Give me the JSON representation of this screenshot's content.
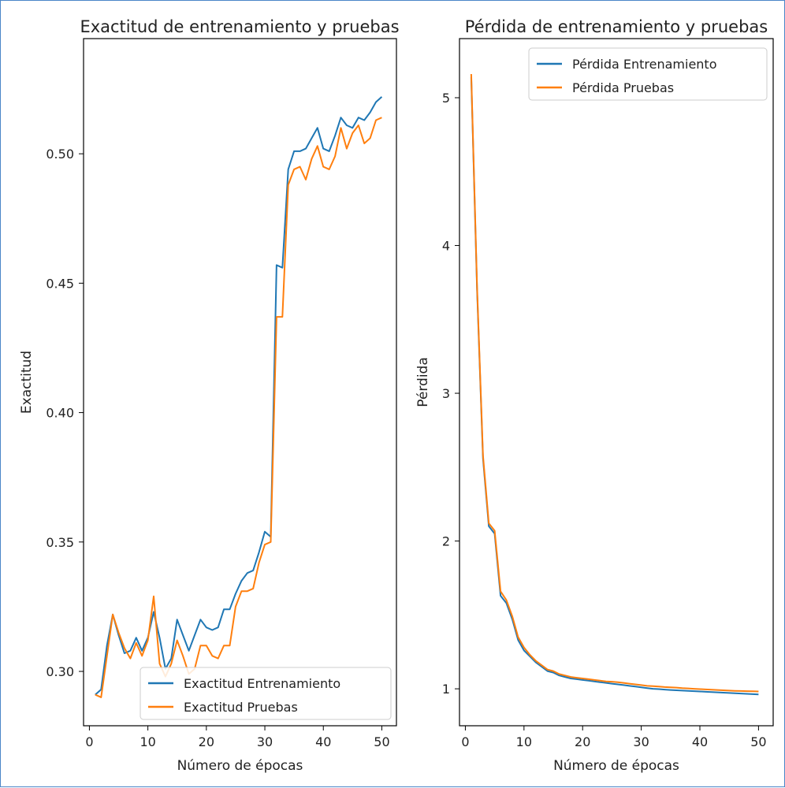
{
  "chart_data": [
    {
      "type": "line",
      "title": "Exactitud de entrenamiento y pruebas",
      "xlabel": "Número de épocas",
      "ylabel": "Exactitud",
      "xlim": [
        -1,
        52.5
      ],
      "ylim": [
        0.279,
        0.5445
      ],
      "xticks": [
        0,
        10,
        20,
        30,
        40,
        50
      ],
      "yticks": [
        0.3,
        0.35,
        0.4,
        0.45,
        0.5
      ],
      "ytick_labels": [
        "0.30",
        "0.35",
        "0.40",
        "0.45",
        "0.50"
      ],
      "legend_position": "lower right",
      "x": [
        1,
        2,
        3,
        4,
        5,
        6,
        7,
        8,
        9,
        10,
        11,
        12,
        13,
        14,
        15,
        16,
        17,
        18,
        19,
        20,
        21,
        22,
        23,
        24,
        25,
        26,
        27,
        28,
        29,
        30,
        31,
        32,
        33,
        34,
        35,
        36,
        37,
        38,
        39,
        40,
        41,
        42,
        43,
        44,
        45,
        46,
        47,
        48,
        49,
        50
      ],
      "series": [
        {
          "name": "Exactitud Entrenamiento",
          "color": "#1f77b4",
          "values": [
            0.291,
            0.293,
            0.31,
            0.322,
            0.314,
            0.307,
            0.308,
            0.313,
            0.308,
            0.313,
            0.323,
            0.313,
            0.301,
            0.305,
            0.32,
            0.314,
            0.308,
            0.314,
            0.32,
            0.317,
            0.316,
            0.317,
            0.324,
            0.324,
            0.33,
            0.335,
            0.338,
            0.339,
            0.346,
            0.354,
            0.352,
            0.457,
            0.456,
            0.494,
            0.501,
            0.501,
            0.502,
            0.506,
            0.51,
            0.502,
            0.501,
            0.507,
            0.514,
            0.511,
            0.51,
            0.514,
            0.513,
            0.516,
            0.52,
            0.522
          ]
        },
        {
          "name": "Exactitud Pruebas",
          "color": "#ff7f0e",
          "values": [
            0.291,
            0.29,
            0.306,
            0.322,
            0.315,
            0.309,
            0.305,
            0.311,
            0.306,
            0.312,
            0.329,
            0.303,
            0.298,
            0.303,
            0.312,
            0.306,
            0.299,
            0.301,
            0.31,
            0.31,
            0.306,
            0.305,
            0.31,
            0.31,
            0.325,
            0.331,
            0.331,
            0.332,
            0.342,
            0.349,
            0.35,
            0.437,
            0.437,
            0.488,
            0.494,
            0.495,
            0.49,
            0.498,
            0.503,
            0.495,
            0.494,
            0.499,
            0.51,
            0.502,
            0.508,
            0.511,
            0.504,
            0.506,
            0.513,
            0.514
          ]
        }
      ]
    },
    {
      "type": "line",
      "title": "Pérdida de entrenamiento y pruebas",
      "xlabel": "Número de épocas",
      "ylabel": "Pérdida",
      "xlim": [
        -1,
        52.5
      ],
      "ylim": [
        0.75,
        5.4
      ],
      "xticks": [
        0,
        10,
        20,
        30,
        40,
        50
      ],
      "yticks": [
        1,
        2,
        3,
        4,
        5
      ],
      "ytick_labels": [
        "1",
        "2",
        "3",
        "4",
        "5"
      ],
      "legend_position": "upper right",
      "x": [
        1,
        2,
        3,
        4,
        5,
        6,
        7,
        8,
        9,
        10,
        11,
        12,
        13,
        14,
        15,
        16,
        17,
        18,
        19,
        20,
        21,
        22,
        23,
        24,
        25,
        26,
        27,
        28,
        29,
        30,
        31,
        32,
        33,
        34,
        35,
        36,
        37,
        38,
        39,
        40,
        41,
        42,
        43,
        44,
        45,
        46,
        47,
        48,
        49,
        50
      ],
      "series": [
        {
          "name": "Pérdida Entrenamiento",
          "color": "#1f77b4",
          "values": [
            5.14,
            3.7,
            2.56,
            2.1,
            2.05,
            1.63,
            1.58,
            1.47,
            1.33,
            1.26,
            1.22,
            1.18,
            1.15,
            1.12,
            1.11,
            1.09,
            1.08,
            1.07,
            1.065,
            1.06,
            1.055,
            1.05,
            1.045,
            1.04,
            1.035,
            1.03,
            1.025,
            1.02,
            1.015,
            1.01,
            1.005,
            1.0,
            0.998,
            0.995,
            0.992,
            0.99,
            0.988,
            0.986,
            0.984,
            0.982,
            0.98,
            0.978,
            0.976,
            0.974,
            0.972,
            0.97,
            0.968,
            0.966,
            0.964,
            0.962
          ]
        },
        {
          "name": "Pérdida Pruebas",
          "color": "#ff7f0e",
          "values": [
            5.16,
            3.72,
            2.58,
            2.12,
            2.07,
            1.66,
            1.6,
            1.49,
            1.35,
            1.28,
            1.23,
            1.19,
            1.16,
            1.13,
            1.12,
            1.1,
            1.09,
            1.08,
            1.075,
            1.07,
            1.065,
            1.06,
            1.055,
            1.05,
            1.048,
            1.045,
            1.04,
            1.035,
            1.03,
            1.025,
            1.02,
            1.018,
            1.015,
            1.012,
            1.01,
            1.008,
            1.005,
            1.003,
            1.0,
            0.998,
            0.996,
            0.994,
            0.992,
            0.99,
            0.988,
            0.986,
            0.985,
            0.984,
            0.983,
            0.982
          ]
        }
      ]
    }
  ]
}
